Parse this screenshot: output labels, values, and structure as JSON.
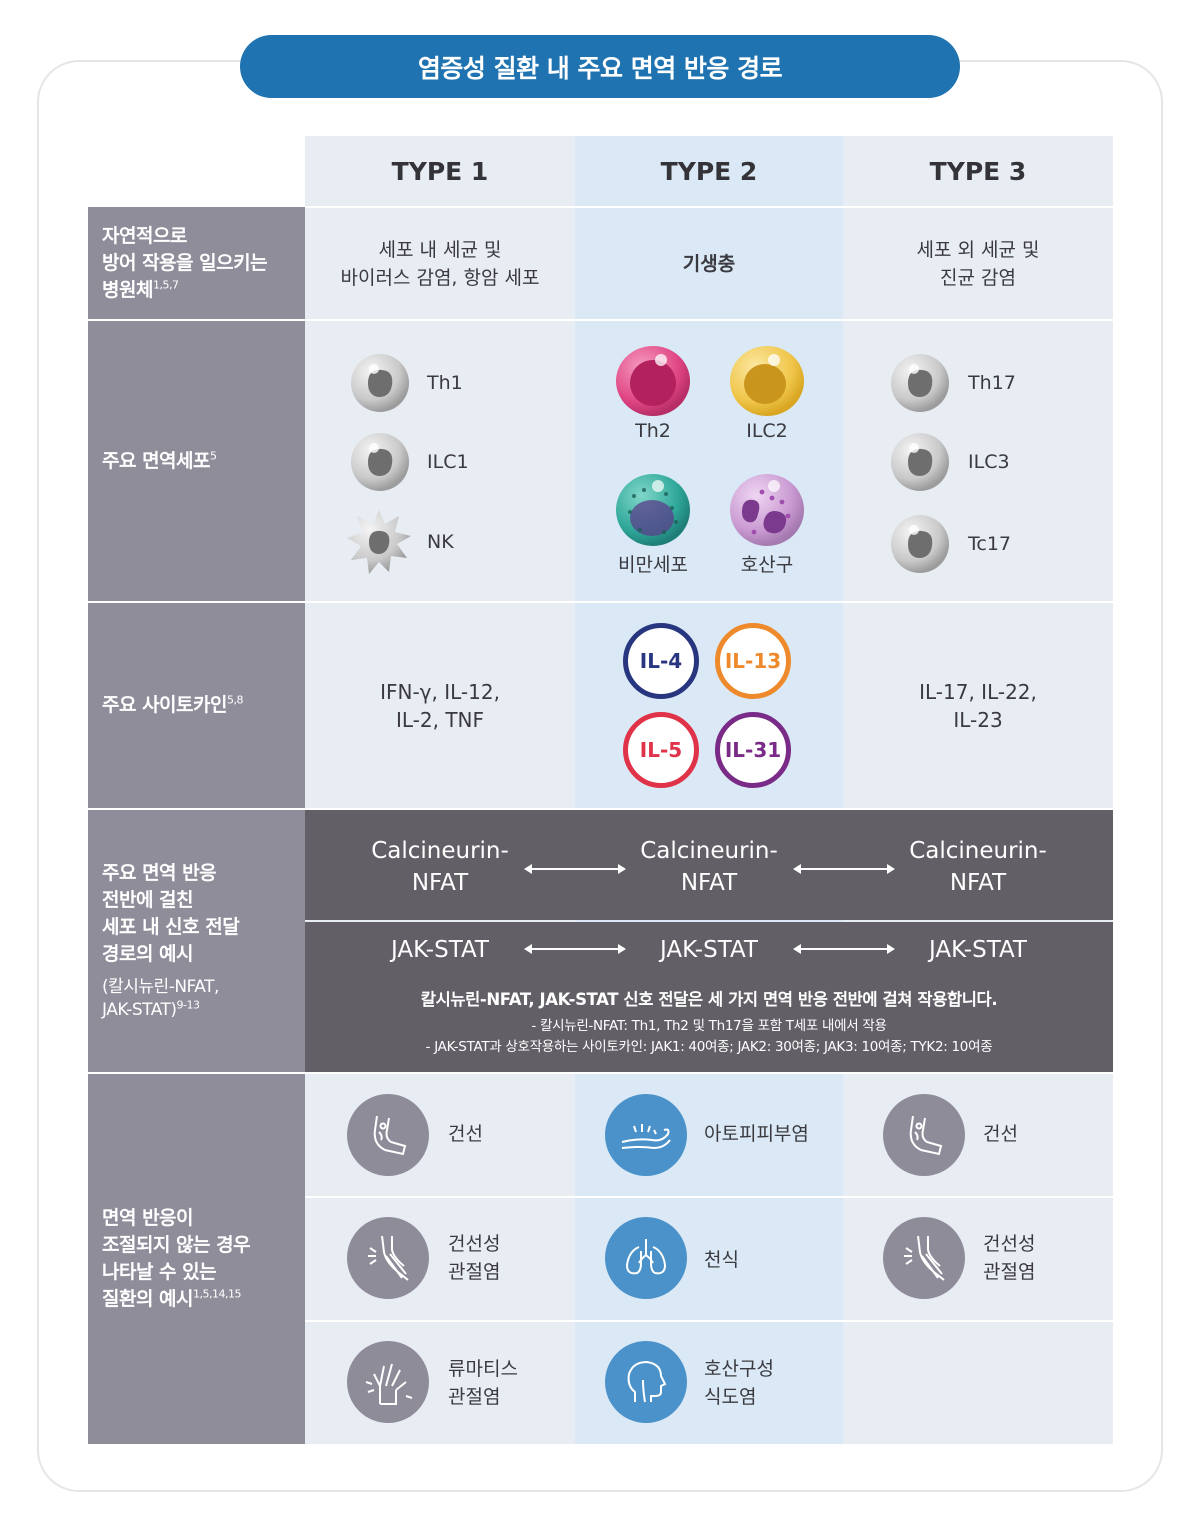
{
  "title": "염증성 질환 내 주요 면역 반응 경로",
  "headers": [
    "TYPE 1",
    "TYPE 2",
    "TYPE 3"
  ],
  "row_labels": {
    "pathogen": [
      "자연적으로",
      "방어 작용을 일으키는",
      "병원체"
    ],
    "pathogen_ref": "1,5,7",
    "cells": "주요 면역세포",
    "cells_ref": "5",
    "cytokines": "주요 사이토카인",
    "cytokines_ref": "5,8",
    "signal": [
      "주요 면역 반응",
      "전반에 걸친",
      "세포 내 신호 전달",
      "경로의 예시"
    ],
    "signal_small": [
      "(칼시뉴린-NFAT,",
      "JAK-STAT)"
    ],
    "signal_ref": "9-13",
    "disease": [
      "면역 반응이",
      "조절되지 않는 경우",
      "나타날 수 있는",
      "질환의 예시"
    ],
    "disease_ref": "1,5,14,15"
  },
  "pathogens": {
    "type1": [
      "세포 내 세균 및",
      "바이러스 감염, 항암 세포"
    ],
    "type2": "기생충",
    "type3": [
      "세포 외 세균 및",
      "진균 감염"
    ]
  },
  "cells": {
    "type1": [
      "Th1",
      "ILC1",
      "NK"
    ],
    "type2": [
      "Th2",
      "ILC2",
      "비만세포",
      "호산구"
    ],
    "type3": [
      "Th17",
      "ILC3",
      "Tc17"
    ]
  },
  "cytokines": {
    "type1": [
      "IFN-γ, IL-12,",
      "IL-2, TNF"
    ],
    "type2": [
      {
        "label": "IL-4",
        "color": "#27367f"
      },
      {
        "label": "IL-13",
        "color": "#ee8a2b"
      },
      {
        "label": "IL-5",
        "color": "#e03248"
      },
      {
        "label": "IL-31",
        "color": "#7a2a87"
      }
    ],
    "type3": [
      "IL-17, IL-22,",
      "IL-23"
    ]
  },
  "signal": {
    "calcineurin": [
      "Calcineurin-",
      "NFAT"
    ],
    "jakstat": "JAK-STAT",
    "note_bold": "칼시뉴린-NFAT, JAK-STAT 신호 전달은 세 가지 면역 반응 전반에 걸쳐 작용합니다.",
    "note_1": "- 칼시뉴린-NFAT: Th1, Th2 및 Th17을 포함 T세포 내에서 작용",
    "note_2": "- JAK-STAT과 상호작용하는 사이토카인: JAK1: 40여종; JAK2: 30여종; JAK3: 10여종; TYK2: 10여종"
  },
  "diseases": {
    "type1": [
      {
        "label": [
          "건선"
        ],
        "icon": "elbow-skin-icon"
      },
      {
        "label": [
          "건선성",
          "관절염"
        ],
        "icon": "knee-joint-icon"
      },
      {
        "label": [
          "류마티스",
          "관절염"
        ],
        "icon": "hand-joint-icon"
      }
    ],
    "type2": [
      {
        "label": [
          "아토피피부염"
        ],
        "icon": "arm-itch-icon"
      },
      {
        "label": [
          "천식"
        ],
        "icon": "lungs-icon"
      },
      {
        "label": [
          "호산구성",
          "식도염"
        ],
        "icon": "head-esophagus-icon"
      }
    ],
    "type3": [
      {
        "label": [
          "건선"
        ],
        "icon": "elbow-skin-icon"
      },
      {
        "label": [
          "건선성",
          "관절염"
        ],
        "icon": "knee-joint-icon"
      }
    ]
  },
  "colors": {
    "title_bg": "#1f73b0",
    "label_bg": "#8f8d9a",
    "dark_band": "#635f66",
    "type2_bg": "#dae9f5",
    "type13_bg": "#e8edf3"
  }
}
